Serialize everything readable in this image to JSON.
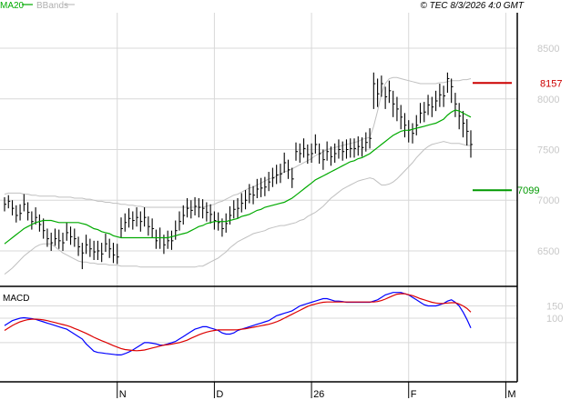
{
  "header": {
    "legend_ma20": "MA20",
    "legend_bbands": "BBands",
    "copyright": "© TEC 8/3/2026 4:0 GMT"
  },
  "colors": {
    "price": "#000000",
    "ma20": "#00aa00",
    "bbands": "#c0c0c0",
    "resistance": "#cc0000",
    "support": "#009900",
    "macd": "#0000ff",
    "signal": "#dd0000",
    "grid": "#d8d8d8",
    "panel_bg": "#ffffff",
    "frame": "#000000"
  },
  "chart_data": [
    {
      "type": "ohlc",
      "title": "",
      "xlabel": "",
      "ylabel": "",
      "ylim": [
        6150,
        8850
      ],
      "y_ticks": [
        6500,
        7000,
        7500,
        8000,
        8500
      ],
      "y_tick_labels": [
        "6500",
        "7000",
        "7500",
        "8000",
        "8500"
      ],
      "x_ticks": [
        {
          "index": 29,
          "label": "N"
        },
        {
          "index": 54,
          "label": "D"
        },
        {
          "index": 79,
          "label": "26"
        },
        {
          "index": 104,
          "label": "F"
        },
        {
          "index": 129,
          "label": "M"
        }
      ],
      "grid": true,
      "levels": [
        {
          "name": "resistance",
          "value": 8157,
          "label": "8157"
        },
        {
          "name": "support",
          "value": 7099,
          "label": "7099"
        }
      ],
      "close": [
        6960,
        6990,
        6920,
        6850,
        6870,
        6960,
        6880,
        6790,
        6830,
        6760,
        6700,
        6620,
        6580,
        6620,
        6600,
        6580,
        6680,
        6640,
        6620,
        6540,
        6480,
        6560,
        6520,
        6490,
        6500,
        6470,
        6570,
        6520,
        6460,
        6440,
        6720,
        6780,
        6820,
        6800,
        6830,
        6790,
        6830,
        6740,
        6720,
        6600,
        6630,
        6560,
        6600,
        6600,
        6700,
        6790,
        6850,
        6920,
        6900,
        6940,
        6930,
        6920,
        6880,
        6860,
        6800,
        6780,
        6720,
        6770,
        6850,
        6910,
        6920,
        6970,
        7000,
        7060,
        7050,
        7110,
        7120,
        7130,
        7180,
        7220,
        7250,
        7260,
        7370,
        7300,
        7210,
        7480,
        7460,
        7510,
        7450,
        7460,
        7550,
        7460,
        7400,
        7480,
        7430,
        7460,
        7500,
        7480,
        7500,
        7510,
        7510,
        7530,
        7520,
        7570,
        7610,
        8150,
        8050,
        8150,
        8020,
        8080,
        7950,
        7900,
        7820,
        7740,
        7690,
        7660,
        7740,
        7860,
        7870,
        7940,
        7920,
        7980,
        8040,
        8030,
        8200,
        8120,
        7950,
        7830,
        7760,
        7680,
        7550
      ],
      "high": [
        7030,
        7050,
        7000,
        6950,
        6960,
        7060,
        6980,
        6890,
        6930,
        6860,
        6820,
        6720,
        6680,
        6720,
        6710,
        6680,
        6780,
        6740,
        6720,
        6640,
        6580,
        6660,
        6620,
        6600,
        6600,
        6580,
        6670,
        6620,
        6580,
        6570,
        6830,
        6870,
        6920,
        6890,
        6930,
        6890,
        6930,
        6840,
        6820,
        6710,
        6730,
        6660,
        6700,
        6700,
        6800,
        6890,
        6950,
        7020,
        7000,
        7030,
        7020,
        7010,
        6980,
        6960,
        6890,
        6880,
        6820,
        6870,
        6940,
        7000,
        7020,
        7070,
        7100,
        7160,
        7140,
        7210,
        7220,
        7230,
        7280,
        7320,
        7350,
        7360,
        7470,
        7400,
        7320,
        7570,
        7560,
        7610,
        7550,
        7560,
        7650,
        7560,
        7500,
        7580,
        7530,
        7560,
        7600,
        7580,
        7600,
        7610,
        7610,
        7630,
        7620,
        7670,
        7710,
        8260,
        8200,
        8230,
        8120,
        8180,
        8080,
        8020,
        7940,
        7860,
        7790,
        7760,
        7840,
        7960,
        7970,
        8040,
        8020,
        8080,
        8150,
        8130,
        8260,
        8200,
        8060,
        7960,
        7880,
        7800,
        7690
      ],
      "low": [
        6890,
        6920,
        6850,
        6780,
        6800,
        6890,
        6800,
        6710,
        6760,
        6690,
        6620,
        6540,
        6500,
        6550,
        6520,
        6500,
        6600,
        6560,
        6540,
        6450,
        6320,
        6470,
        6440,
        6410,
        6410,
        6390,
        6490,
        6430,
        6380,
        6370,
        6630,
        6690,
        6730,
        6710,
        6740,
        6690,
        6740,
        6650,
        6630,
        6520,
        6520,
        6470,
        6520,
        6510,
        6610,
        6700,
        6760,
        6830,
        6820,
        6850,
        6830,
        6820,
        6790,
        6770,
        6710,
        6700,
        6640,
        6680,
        6760,
        6820,
        6820,
        6880,
        6910,
        6970,
        6960,
        7020,
        7030,
        7040,
        7090,
        7130,
        7160,
        7170,
        7270,
        7210,
        7120,
        7390,
        7370,
        7420,
        7360,
        7370,
        7460,
        7360,
        7300,
        7390,
        7340,
        7370,
        7410,
        7390,
        7410,
        7420,
        7420,
        7440,
        7430,
        7480,
        7510,
        7900,
        7920,
        8020,
        7900,
        7960,
        7820,
        7780,
        7700,
        7620,
        7570,
        7560,
        7640,
        7760,
        7770,
        7840,
        7820,
        7880,
        7920,
        7920,
        8060,
        7960,
        7820,
        7700,
        7620,
        7540,
        7420
      ],
      "ma20": [
        6570,
        6600,
        6630,
        6660,
        6690,
        6720,
        6740,
        6760,
        6780,
        6790,
        6800,
        6800,
        6800,
        6790,
        6780,
        6780,
        6780,
        6780,
        6780,
        6780,
        6770,
        6760,
        6740,
        6720,
        6710,
        6690,
        6680,
        6670,
        6650,
        6640,
        6630,
        6630,
        6630,
        6630,
        6630,
        6630,
        6630,
        6630,
        6630,
        6630,
        6630,
        6630,
        6630,
        6640,
        6650,
        6660,
        6670,
        6680,
        6700,
        6720,
        6740,
        6750,
        6770,
        6780,
        6790,
        6790,
        6790,
        6790,
        6800,
        6810,
        6820,
        6840,
        6850,
        6860,
        6880,
        6900,
        6910,
        6930,
        6940,
        6950,
        6960,
        6970,
        6980,
        7000,
        7020,
        7050,
        7080,
        7110,
        7140,
        7170,
        7200,
        7220,
        7240,
        7260,
        7280,
        7300,
        7320,
        7340,
        7360,
        7380,
        7390,
        7410,
        7420,
        7440,
        7460,
        7490,
        7520,
        7550,
        7580,
        7610,
        7640,
        7660,
        7680,
        7690,
        7690,
        7700,
        7710,
        7720,
        7730,
        7740,
        7750,
        7760,
        7780,
        7800,
        7840,
        7870,
        7890,
        7880,
        7860,
        7840,
        7820
      ],
      "bb_upper": [
        7060,
        7070,
        7070,
        7070,
        7070,
        7060,
        7060,
        7050,
        7050,
        7040,
        7040,
        7040,
        7040,
        7040,
        7030,
        7030,
        7030,
        7030,
        7020,
        7020,
        7020,
        7010,
        7010,
        7000,
        6990,
        6990,
        6980,
        6980,
        6970,
        6970,
        6960,
        6960,
        6950,
        6950,
        6940,
        6940,
        6930,
        6930,
        6930,
        6930,
        6930,
        6930,
        6930,
        6930,
        6930,
        6930,
        6930,
        6930,
        6930,
        6930,
        6930,
        6930,
        6940,
        6950,
        6960,
        6980,
        6990,
        7010,
        7030,
        7050,
        7060,
        7080,
        7100,
        7120,
        7130,
        7150,
        7170,
        7190,
        7210,
        7220,
        7240,
        7260,
        7280,
        7290,
        7310,
        7330,
        7350,
        7370,
        7390,
        7410,
        7440,
        7460,
        7480,
        7500,
        7510,
        7520,
        7530,
        7540,
        7550,
        7560,
        7570,
        7580,
        7600,
        7610,
        7620,
        7730,
        7880,
        8050,
        8150,
        8200,
        8210,
        8210,
        8200,
        8190,
        8180,
        8170,
        8160,
        8150,
        8150,
        8150,
        8150,
        8150,
        8160,
        8160,
        8170,
        8180,
        8180,
        8180,
        8190,
        8190,
        8200
      ],
      "bb_lower": [
        6270,
        6300,
        6330,
        6370,
        6410,
        6450,
        6480,
        6510,
        6540,
        6560,
        6570,
        6570,
        6570,
        6540,
        6510,
        6480,
        6460,
        6440,
        6420,
        6400,
        6390,
        6390,
        6380,
        6380,
        6370,
        6370,
        6370,
        6360,
        6360,
        6360,
        6350,
        6350,
        6350,
        6350,
        6350,
        6340,
        6340,
        6340,
        6340,
        6340,
        6340,
        6340,
        6340,
        6340,
        6340,
        6340,
        6340,
        6340,
        6340,
        6340,
        6350,
        6350,
        6370,
        6390,
        6410,
        6430,
        6460,
        6490,
        6530,
        6560,
        6590,
        6610,
        6630,
        6650,
        6670,
        6680,
        6690,
        6700,
        6720,
        6730,
        6740,
        6750,
        6750,
        6760,
        6770,
        6780,
        6800,
        6810,
        6840,
        6860,
        6880,
        6910,
        6940,
        6980,
        7020,
        7050,
        7080,
        7110,
        7130,
        7150,
        7170,
        7190,
        7200,
        7210,
        7220,
        7210,
        7180,
        7150,
        7150,
        7160,
        7180,
        7210,
        7250,
        7290,
        7330,
        7370,
        7420,
        7460,
        7500,
        7530,
        7550,
        7560,
        7570,
        7580,
        7570,
        7560,
        7560,
        7560,
        7550,
        7540,
        7540
      ]
    },
    {
      "type": "line",
      "title": "MACD",
      "xlabel": "",
      "ylabel": "",
      "ylim": [
        -160,
        230
      ],
      "y_ticks": [
        100,
        150
      ],
      "y_tick_labels": [
        "100",
        "150"
      ],
      "grid": true,
      "series": [
        {
          "name": "",
          "color": "#0000ff",
          "values": [
            70,
            80,
            90,
            95,
            100,
            102,
            100,
            98,
            95,
            90,
            85,
            80,
            75,
            70,
            65,
            60,
            55,
            45,
            35,
            25,
            15,
            -5,
            -20,
            -35,
            -40,
            -42,
            -44,
            -46,
            -48,
            -50,
            -50,
            -45,
            -38,
            -30,
            -20,
            -10,
            0,
            0,
            -2,
            -5,
            -10,
            -10,
            -5,
            0,
            5,
            15,
            25,
            35,
            45,
            55,
            60,
            65,
            65,
            60,
            55,
            50,
            40,
            35,
            35,
            40,
            50,
            55,
            60,
            65,
            70,
            75,
            80,
            85,
            90,
            100,
            110,
            115,
            120,
            125,
            130,
            140,
            150,
            155,
            160,
            165,
            170,
            175,
            180,
            180,
            175,
            170,
            170,
            168,
            165,
            165,
            165,
            165,
            165,
            165,
            165,
            170,
            175,
            185,
            195,
            200,
            205,
            205,
            205,
            200,
            195,
            185,
            175,
            165,
            155,
            150,
            150,
            150,
            155,
            160,
            170,
            175,
            165,
            150,
            125,
            95,
            60
          ]
        },
        {
          "name": "",
          "color": "#dd0000",
          "values": [
            50,
            60,
            70,
            78,
            85,
            90,
            94,
            96,
            96,
            95,
            93,
            90,
            86,
            82,
            78,
            74,
            70,
            65,
            58,
            52,
            45,
            38,
            30,
            22,
            15,
            8,
            2,
            -5,
            -12,
            -18,
            -24,
            -28,
            -30,
            -32,
            -33,
            -32,
            -30,
            -26,
            -22,
            -18,
            -14,
            -10,
            -8,
            -6,
            -3,
            0,
            5,
            10,
            18,
            25,
            32,
            38,
            43,
            47,
            50,
            52,
            52,
            52,
            52,
            52,
            53,
            55,
            57,
            60,
            63,
            66,
            69,
            72,
            75,
            80,
            85,
            92,
            100,
            108,
            116,
            124,
            132,
            140,
            148,
            154,
            158,
            162,
            165,
            166,
            166,
            166,
            166,
            166,
            166,
            166,
            166,
            166,
            166,
            166,
            166,
            166,
            168,
            172,
            178,
            185,
            192,
            198,
            200,
            200,
            196,
            192,
            186,
            180,
            175,
            170,
            165,
            162,
            160,
            160,
            162,
            163,
            163,
            158,
            150,
            140,
            125
          ]
        }
      ]
    }
  ]
}
